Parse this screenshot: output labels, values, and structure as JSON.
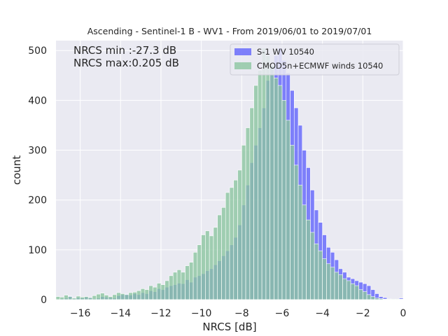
{
  "chart_data": {
    "type": "bar",
    "title": "Ascending - Sentinel-1 B - WV1 - From 2019/06/01 to 2019/07/01",
    "xlabel": "NRCS [dB]",
    "ylabel": "count",
    "xlim": [
      -17.2,
      0.0
    ],
    "ylim": [
      0,
      520
    ],
    "xticks": [
      -16,
      -14,
      -12,
      -10,
      -8,
      -6,
      -4,
      -2,
      0
    ],
    "xtick_labels": [
      "−16",
      "−14",
      "−12",
      "−10",
      "−8",
      "−6",
      "−4",
      "−2",
      "0"
    ],
    "yticks": [
      0,
      100,
      200,
      300,
      400,
      500
    ],
    "grid": true,
    "background": "#eaeaf2",
    "legend_position": "upper right",
    "annotations": [
      "NRCS min :-27.3 dB",
      "NRCS max:0.205 dB"
    ],
    "bin_width": 0.2,
    "x": [
      -17.1,
      -16.9,
      -16.7,
      -16.5,
      -16.3,
      -16.1,
      -15.9,
      -15.7,
      -15.5,
      -15.3,
      -15.1,
      -14.9,
      -14.7,
      -14.5,
      -14.3,
      -14.1,
      -13.9,
      -13.7,
      -13.5,
      -13.3,
      -13.1,
      -12.9,
      -12.7,
      -12.5,
      -12.3,
      -12.1,
      -11.9,
      -11.7,
      -11.5,
      -11.3,
      -11.1,
      -10.9,
      -10.7,
      -10.5,
      -10.3,
      -10.1,
      -9.9,
      -9.7,
      -9.5,
      -9.3,
      -9.1,
      -8.9,
      -8.7,
      -8.5,
      -8.3,
      -8.1,
      -7.9,
      -7.7,
      -7.5,
      -7.3,
      -7.1,
      -6.9,
      -6.7,
      -6.5,
      -6.3,
      -6.1,
      -5.9,
      -5.7,
      -5.5,
      -5.3,
      -5.1,
      -4.9,
      -4.7,
      -4.5,
      -4.3,
      -4.1,
      -3.9,
      -3.7,
      -3.5,
      -3.3,
      -3.1,
      -2.9,
      -2.7,
      -2.5,
      -2.3,
      -2.1,
      -1.9,
      -1.7,
      -1.5,
      -1.3,
      -1.1,
      -0.9,
      -0.7,
      -0.5,
      -0.3,
      -0.1
    ],
    "series": [
      {
        "name": "S-1 WV 10540",
        "color": "#6a6cfb",
        "alpha": 0.85,
        "values": [
          1,
          2,
          3,
          7,
          2,
          4,
          3,
          5,
          4,
          2,
          3,
          6,
          5,
          4,
          3,
          8,
          10,
          11,
          9,
          12,
          10,
          14,
          12,
          18,
          16,
          22,
          20,
          25,
          28,
          30,
          33,
          32,
          40,
          35,
          45,
          48,
          52,
          58,
          62,
          70,
          78,
          88,
          98,
          110,
          125,
          150,
          190,
          230,
          275,
          310,
          345,
          385,
          440,
          470,
          490,
          505,
          480,
          455,
          420,
          385,
          350,
          300,
          265,
          220,
          180,
          155,
          130,
          105,
          95,
          80,
          62,
          55,
          45,
          42,
          38,
          35,
          32,
          28,
          20,
          12,
          6,
          4,
          2,
          1,
          1,
          3
        ]
      },
      {
        "name": "CMOD5n+ECMWF winds 10540",
        "color": "#8cc6a0",
        "alpha": 0.8,
        "values": [
          6,
          5,
          9,
          6,
          3,
          7,
          5,
          6,
          4,
          8,
          11,
          13,
          9,
          6,
          10,
          14,
          12,
          10,
          14,
          15,
          18,
          22,
          20,
          28,
          25,
          33,
          30,
          38,
          48,
          55,
          60,
          55,
          68,
          75,
          95,
          110,
          130,
          138,
          128,
          145,
          170,
          185,
          215,
          225,
          240,
          260,
          310,
          345,
          385,
          430,
          460,
          505,
          490,
          470,
          445,
          430,
          400,
          360,
          310,
          270,
          230,
          190,
          160,
          135,
          112,
          98,
          82,
          72,
          65,
          55,
          50,
          42,
          38,
          32,
          28,
          20,
          16,
          10,
          6,
          3,
          2,
          1,
          1,
          1,
          1,
          1
        ]
      }
    ]
  }
}
